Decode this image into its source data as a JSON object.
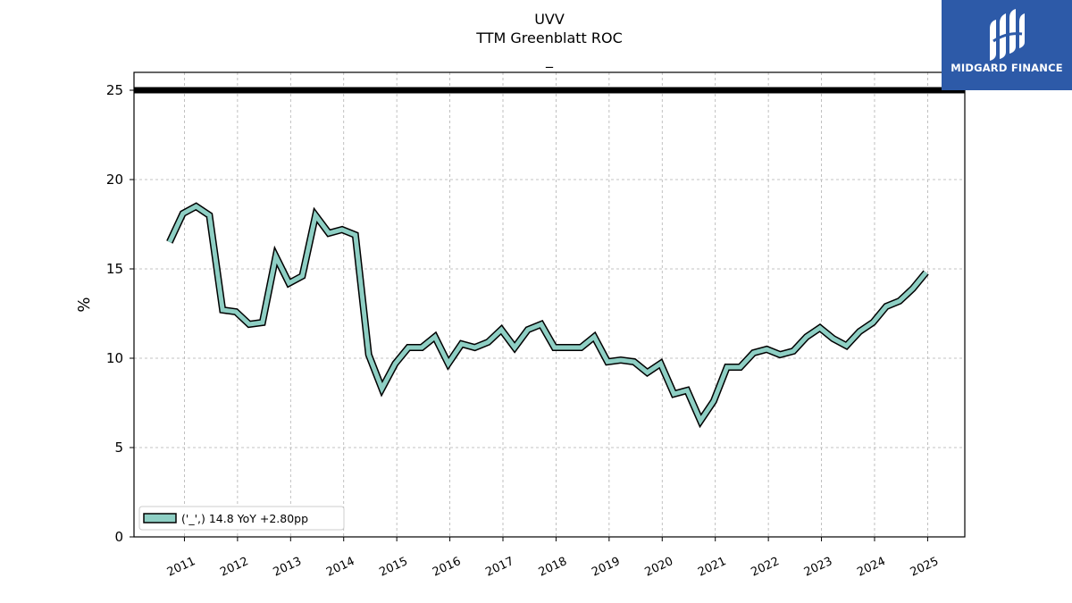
{
  "chart_data": {
    "type": "line",
    "title": "UVV",
    "subtitle": "TTM Greenblatt ROC",
    "subtitle2": "_",
    "ylabel": "%",
    "xlabel": "",
    "ylim": [
      0,
      26
    ],
    "xlim": [
      2010.05,
      2025.7
    ],
    "yticks": [
      0,
      5,
      10,
      15,
      20,
      25
    ],
    "xticks": [
      2011,
      2012,
      2013,
      2014,
      2015,
      2016,
      2017,
      2018,
      2019,
      2020,
      2021,
      2022,
      2023,
      2024,
      2025
    ],
    "grid": true,
    "reference_line": {
      "y": 25,
      "color": "#000000"
    },
    "legend": {
      "placement": "lower-left",
      "label": "('_',) 14.8 YoY +2.80pp"
    },
    "series": [
      {
        "name": "('_',) 14.8 YoY +2.80pp",
        "color": "#8ecfc4",
        "x": [
          2010.72,
          2010.97,
          2011.22,
          2011.47,
          2011.72,
          2011.97,
          2012.22,
          2012.47,
          2012.72,
          2012.97,
          2013.22,
          2013.47,
          2013.72,
          2013.97,
          2014.22,
          2014.47,
          2014.72,
          2014.97,
          2015.22,
          2015.47,
          2015.72,
          2015.97,
          2016.22,
          2016.47,
          2016.72,
          2016.97,
          2017.22,
          2017.47,
          2017.72,
          2017.97,
          2018.22,
          2018.47,
          2018.72,
          2018.97,
          2019.22,
          2019.47,
          2019.72,
          2019.97,
          2020.22,
          2020.47,
          2020.72,
          2020.97,
          2021.22,
          2021.47,
          2021.72,
          2021.97,
          2022.22,
          2022.47,
          2022.72,
          2022.97,
          2023.22,
          2023.47,
          2023.72,
          2023.97,
          2024.22,
          2024.47,
          2024.72,
          2024.97
        ],
        "y": [
          16.5,
          18.1,
          18.5,
          18.0,
          12.7,
          12.6,
          11.9,
          12.0,
          15.7,
          14.2,
          14.6,
          18.0,
          17.0,
          17.2,
          16.9,
          10.2,
          8.3,
          9.7,
          10.6,
          10.6,
          11.2,
          9.7,
          10.8,
          10.6,
          10.9,
          11.6,
          10.6,
          11.6,
          11.9,
          10.6,
          10.6,
          10.6,
          11.2,
          9.8,
          9.9,
          9.8,
          9.2,
          9.7,
          8.0,
          8.2,
          6.5,
          7.6,
          9.5,
          9.5,
          10.3,
          10.5,
          10.2,
          10.4,
          11.2,
          11.7,
          11.1,
          10.7,
          11.5,
          12.0,
          12.9,
          13.2,
          13.9,
          14.8
        ]
      }
    ]
  },
  "brand": {
    "name": "MIDGARD FINANCE"
  }
}
